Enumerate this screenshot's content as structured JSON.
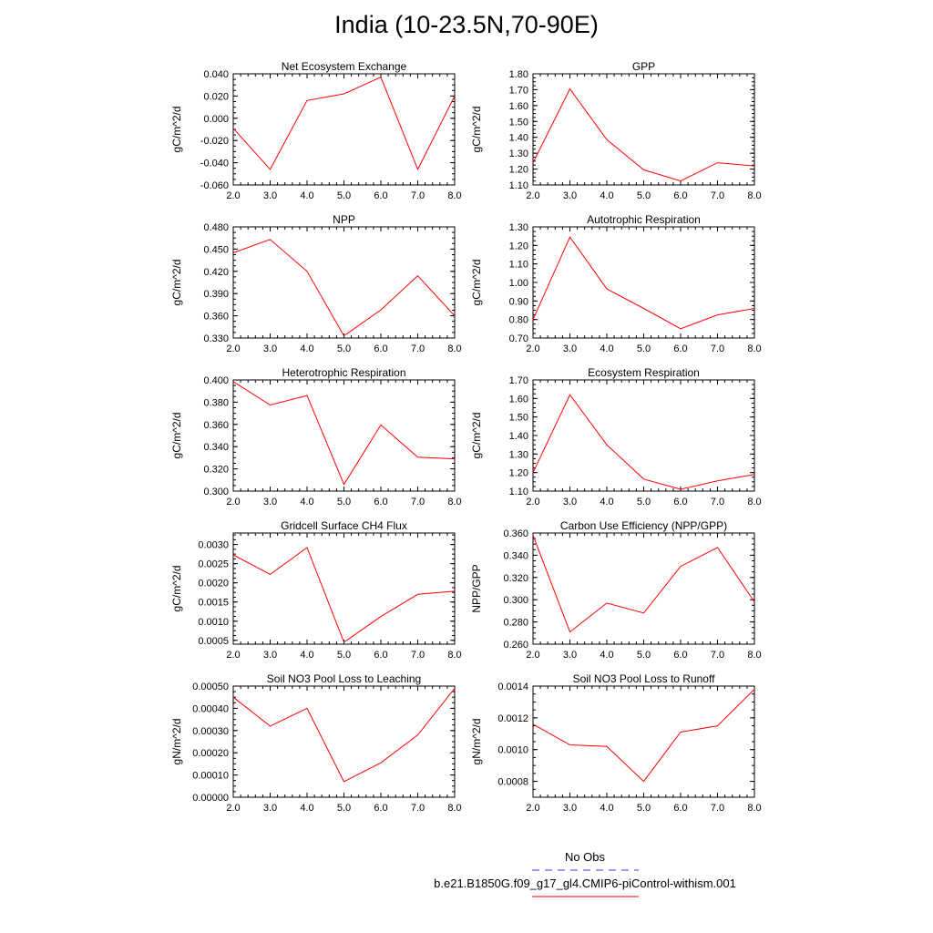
{
  "title": "India (10-23.5N,70-90E)",
  "colors": {
    "model": "#ff0000",
    "obs": "#3a3adf",
    "axis": "#000000"
  },
  "legend": {
    "obs_label": "No Obs",
    "model_label": "b.e21.B1850G.f09_g17_gl4.CMIP6-piControl-withism.001"
  },
  "chart_data": [
    {
      "type": "line",
      "title": "Net Ecosystem Exchange",
      "ylabel": "gC/m^2/d",
      "x": [
        2,
        3,
        4,
        5,
        6,
        7,
        8
      ],
      "y": [
        -0.009,
        -0.046,
        0.016,
        0.022,
        0.037,
        -0.046,
        0.02
      ],
      "xlim": [
        2,
        8
      ],
      "ylim": [
        -0.06,
        0.04
      ],
      "xticks": [
        "2.0",
        "3.0",
        "4.0",
        "5.0",
        "6.0",
        "7.0",
        "8.0"
      ],
      "yticks": [
        "-0.060",
        "-0.040",
        "-0.020",
        "0.000",
        "0.020",
        "0.040"
      ]
    },
    {
      "type": "line",
      "title": "GPP",
      "ylabel": "gC/m^2/d",
      "x": [
        2,
        3,
        4,
        5,
        6,
        7,
        8
      ],
      "y": [
        1.24,
        1.705,
        1.385,
        1.195,
        1.125,
        1.24,
        1.22
      ],
      "xlim": [
        2,
        8
      ],
      "ylim": [
        1.1,
        1.8
      ],
      "xticks": [
        "2.0",
        "3.0",
        "4.0",
        "5.0",
        "6.0",
        "7.0",
        "8.0"
      ],
      "yticks": [
        "1.10",
        "1.20",
        "1.30",
        "1.40",
        "1.50",
        "1.60",
        "1.70",
        "1.80"
      ]
    },
    {
      "type": "line",
      "title": "NPP",
      "ylabel": "gC/m^2/d",
      "x": [
        2,
        3,
        4,
        5,
        6,
        7,
        8
      ],
      "y": [
        0.445,
        0.463,
        0.42,
        0.333,
        0.368,
        0.414,
        0.36
      ],
      "xlim": [
        2,
        8
      ],
      "ylim": [
        0.33,
        0.48
      ],
      "xticks": [
        "2.0",
        "3.0",
        "4.0",
        "5.0",
        "6.0",
        "7.0",
        "8.0"
      ],
      "yticks": [
        "0.330",
        "0.360",
        "0.390",
        "0.420",
        "0.450",
        "0.480"
      ]
    },
    {
      "type": "line",
      "title": "Autotrophic Respiration",
      "ylabel": "gC/m^2/d",
      "x": [
        2,
        3,
        4,
        5,
        6,
        7,
        8
      ],
      "y": [
        0.8,
        1.245,
        0.965,
        0.86,
        0.75,
        0.825,
        0.86
      ],
      "xlim": [
        2,
        8
      ],
      "ylim": [
        0.7,
        1.3
      ],
      "xticks": [
        "2.0",
        "3.0",
        "4.0",
        "5.0",
        "6.0",
        "7.0",
        "8.0"
      ],
      "yticks": [
        "0.70",
        "0.80",
        "0.90",
        "1.00",
        "1.10",
        "1.20",
        "1.30"
      ]
    },
    {
      "type": "line",
      "title": "Heterotrophic Respiration",
      "ylabel": "gC/m^2/d",
      "x": [
        2,
        3,
        4,
        5,
        6,
        7,
        8
      ],
      "y": [
        0.3985,
        0.3775,
        0.386,
        0.306,
        0.3595,
        0.3305,
        0.329
      ],
      "xlim": [
        2,
        8
      ],
      "ylim": [
        0.3,
        0.4
      ],
      "xticks": [
        "2.0",
        "3.0",
        "4.0",
        "5.0",
        "6.0",
        "7.0",
        "8.0"
      ],
      "yticks": [
        "0.300",
        "0.320",
        "0.340",
        "0.360",
        "0.380",
        "0.400"
      ]
    },
    {
      "type": "line",
      "title": "Ecosystem Respiration",
      "ylabel": "gC/m^2/d",
      "x": [
        2,
        3,
        4,
        5,
        6,
        7,
        8
      ],
      "y": [
        1.2,
        1.62,
        1.35,
        1.165,
        1.11,
        1.155,
        1.19
      ],
      "xlim": [
        2,
        8
      ],
      "ylim": [
        1.1,
        1.7
      ],
      "xticks": [
        "2.0",
        "3.0",
        "4.0",
        "5.0",
        "6.0",
        "7.0",
        "8.0"
      ],
      "yticks": [
        "1.10",
        "1.20",
        "1.30",
        "1.40",
        "1.50",
        "1.60",
        "1.70"
      ]
    },
    {
      "type": "line",
      "title": "Gridcell Surface CH4 Flux",
      "ylabel": "gC/m^2/d",
      "x": [
        2,
        3,
        4,
        5,
        6,
        7,
        8
      ],
      "y": [
        0.00273,
        0.00222,
        0.00292,
        0.00045,
        0.00112,
        0.0017,
        0.00178
      ],
      "xlim": [
        2,
        8
      ],
      "ylim": [
        0.0004,
        0.0033
      ],
      "xticks": [
        "2.0",
        "3.0",
        "4.0",
        "5.0",
        "6.0",
        "7.0",
        "8.0"
      ],
      "yticks": [
        "0.0005",
        "0.0010",
        "0.0015",
        "0.0020",
        "0.0025",
        "0.0030"
      ],
      "ytick_values": [
        0.0005,
        0.001,
        0.0015,
        0.002,
        0.0025,
        0.003
      ]
    },
    {
      "type": "line",
      "title": "Carbon Use Efficiency (NPP/GPP)",
      "ylabel": "NPP/GPP",
      "x": [
        2,
        3,
        4,
        5,
        6,
        7,
        8
      ],
      "y": [
        0.358,
        0.271,
        0.297,
        0.288,
        0.33,
        0.347,
        0.298
      ],
      "xlim": [
        2,
        8
      ],
      "ylim": [
        0.26,
        0.36
      ],
      "xticks": [
        "2.0",
        "3.0",
        "4.0",
        "5.0",
        "6.0",
        "7.0",
        "8.0"
      ],
      "yticks": [
        "0.260",
        "0.280",
        "0.300",
        "0.320",
        "0.340",
        "0.360"
      ]
    },
    {
      "type": "line",
      "title": "Soil NO3 Pool Loss to Leaching",
      "ylabel": "gN/m^2/d",
      "x": [
        2,
        3,
        4,
        5,
        6,
        7,
        8
      ],
      "y": [
        0.00045,
        0.00032,
        0.0004,
        7e-05,
        0.000155,
        0.00028,
        0.00049
      ],
      "xlim": [
        2,
        8
      ],
      "ylim": [
        0,
        0.0005
      ],
      "xticks": [
        "2.0",
        "3.0",
        "4.0",
        "5.0",
        "6.0",
        "7.0",
        "8.0"
      ],
      "yticks": [
        "0.00000",
        "0.00010",
        "0.00020",
        "0.00030",
        "0.00040",
        "0.00050"
      ]
    },
    {
      "type": "line",
      "title": "Soil NO3 Pool Loss to Runoff",
      "ylabel": "gN/m^2/d",
      "x": [
        2,
        3,
        4,
        5,
        6,
        7,
        8
      ],
      "y": [
        0.00116,
        0.00103,
        0.00102,
        0.0008,
        0.00111,
        0.00115,
        0.00138
      ],
      "xlim": [
        2,
        8
      ],
      "ylim": [
        0.0007,
        0.0014
      ],
      "xticks": [
        "2.0",
        "3.0",
        "4.0",
        "5.0",
        "6.0",
        "7.0",
        "8.0"
      ],
      "yticks": [
        "0.0008",
        "0.0010",
        "0.0012",
        "0.0014"
      ],
      "ytick_values": [
        0.0008,
        0.001,
        0.0012,
        0.0014
      ]
    }
  ]
}
